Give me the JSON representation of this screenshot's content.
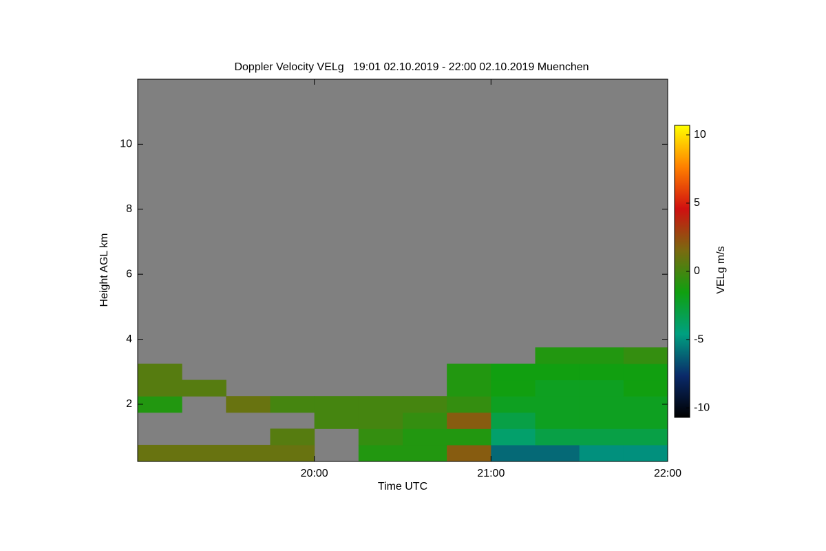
{
  "chart_data": {
    "type": "heatmap",
    "title": "Doppler Velocity VELg   19:01 02.10.2019 - 22:00 02.10.2019 Muenchen",
    "x_label": "Time UTC",
    "y_label": "Height AGL km",
    "colorbar_label": "VELg m/s",
    "xlim": [
      19.0,
      22.0
    ],
    "xticks": [
      {
        "value": 20,
        "label": "20:00"
      },
      {
        "value": 21,
        "label": "21:00"
      },
      {
        "value": 22,
        "label": "22:00"
      }
    ],
    "ylim": [
      0.24,
      12.0
    ],
    "yticks": [
      2,
      4,
      6,
      8,
      10
    ],
    "clim": [
      -10.7,
      10.7
    ],
    "cticks": [
      -10,
      -5,
      0,
      5,
      10
    ],
    "colormap": [
      "#000000",
      "#0a2a6a",
      "#00a080",
      "#10a010",
      "#7a6a10",
      "#d01010",
      "#ff8000",
      "#ffff00"
    ],
    "missing_color": "#808080",
    "x": [
      19.125,
      19.375,
      19.625,
      19.875,
      20.125,
      20.375,
      20.625,
      20.875,
      21.125,
      21.375,
      21.625,
      21.875
    ],
    "y": [
      0.5,
      1.0,
      1.5,
      2.0,
      2.5,
      3.0,
      3.5
    ],
    "z": [
      [
        1,
        1,
        1,
        1,
        null,
        -1,
        -1,
        2,
        -6,
        -6,
        -5,
        -5
      ],
      [
        null,
        null,
        null,
        0.5,
        null,
        -0.5,
        -1,
        -1,
        -4,
        -3,
        -3,
        -3
      ],
      [
        null,
        null,
        null,
        null,
        0,
        0,
        -0.5,
        2,
        -3,
        -2,
        -2,
        -2
      ],
      [
        -1,
        null,
        1,
        0,
        0,
        0,
        0,
        -0.5,
        -2,
        -2,
        -2,
        -2
      ],
      [
        0.5,
        0.5,
        null,
        null,
        null,
        null,
        null,
        -1,
        -1.5,
        -2,
        -2,
        -1.5
      ],
      [
        0.5,
        null,
        null,
        null,
        null,
        null,
        null,
        -1,
        -1.5,
        -1.5,
        -1.5,
        -1.5
      ],
      [
        null,
        null,
        null,
        null,
        null,
        null,
        null,
        null,
        null,
        -1,
        -1,
        -0.5
      ]
    ]
  }
}
